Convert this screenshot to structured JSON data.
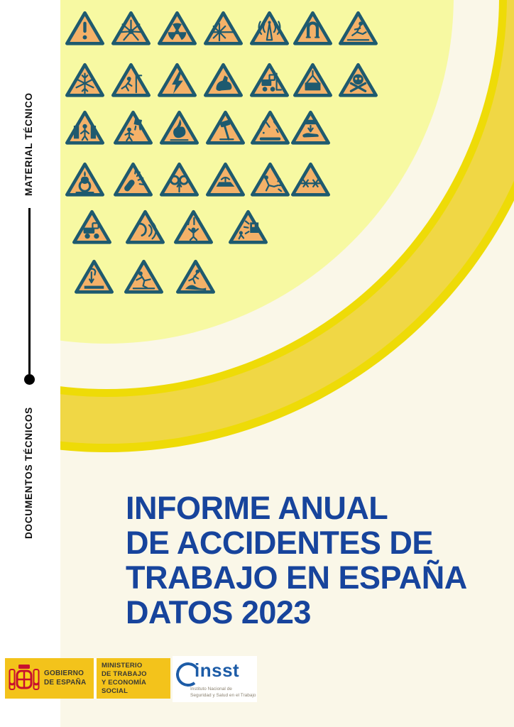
{
  "page": {
    "kind": "report-cover"
  },
  "sidebar": {
    "top_label": "MATERIAL TÉCNICO",
    "bottom_label": "DOCUMENTOS TÉCNICOS"
  },
  "title": {
    "lines": [
      "INFORME ANUAL",
      "DE ACCIDENTES DE",
      "TRABAJO EN ESPAÑA",
      "DATOS 2023"
    ]
  },
  "hazard_icons": {
    "triangle_fill": "#F4B168",
    "triangle_stroke": "#1E5A6F",
    "rows": [
      [
        "general-warning",
        "explosive-material",
        "radioactive-material",
        "laser-beam",
        "non-ionizing-radiation",
        "magnetic-field",
        "trip-hazard"
      ],
      [
        "low-temperature",
        "fall-from-height",
        "electrical-hazard",
        "guard-dog",
        "forklift-truck",
        "suspended-load",
        "toxic-material"
      ],
      [
        "crush-between-objects",
        "falling-object",
        "flammable-material",
        "hand-tool-impact",
        "corrosive-material",
        "hand-crush-press"
      ],
      [
        "oxidizing-material",
        "pressure-burst",
        "hand-entanglement",
        "cutting-hazard",
        "hot-work-sparks",
        "barbed-wire"
      ],
      [
        "industrial-vehicle",
        "noise",
        "overhead-debris",
        "blasting"
      ],
      [
        "falling-load",
        "slippery-surface",
        "drowning-hazard"
      ]
    ]
  },
  "footer": {
    "government": {
      "line1": "GOBIERNO",
      "line2": "DE ESPAÑA"
    },
    "ministry": {
      "lines": [
        "MINISTERIO",
        "DE TRABAJO",
        "Y ECONOMÍA SOCIAL"
      ]
    },
    "insst": {
      "acronym": "insst",
      "name_line1": "Instituto Nacional de",
      "name_line2": "Seguridad y Salud en el Trabajo"
    }
  },
  "colors": {
    "page_bg": "#FAF7E8",
    "sidebar_bg": "#FFFFFF",
    "pale_circle": "#F7F9A2",
    "band_fill": "#F0D745",
    "band_rim": "#EEDB07",
    "title_blue": "#17449C",
    "logo_yellow": "#F3C31B",
    "insst_blue": "#1D5CA7",
    "triangle_fill": "#F4B168",
    "triangle_stroke": "#1E5A6F",
    "flag_red": "#C8102E",
    "flag_yellow": "#F7D117",
    "footer_text": "#3B3A33",
    "insst_sub_text": "#8C8372"
  }
}
